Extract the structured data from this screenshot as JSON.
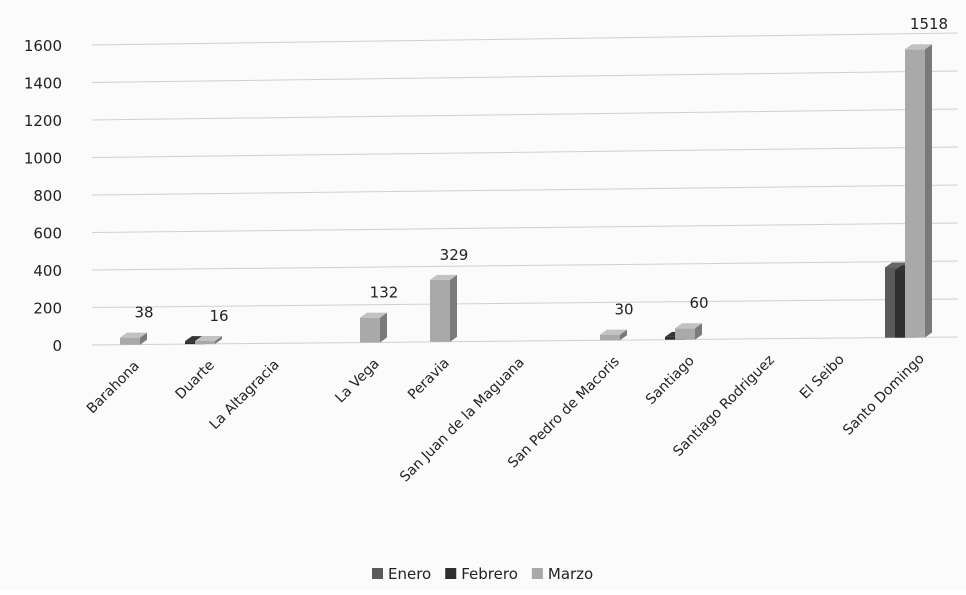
{
  "chart_data": {
    "type": "bar",
    "categories": [
      "Barahona",
      "Duarte",
      "La Altagracia",
      "La Vega",
      "Peravia",
      "San Juan de la Maguana",
      "San Pedro de Macoris",
      "Santiago",
      "Santiago Rodriguez",
      "El Seibo",
      "Santo Domingo"
    ],
    "series": [
      {
        "name": "Enero",
        "color": "#5a5a5a",
        "values": [
          0,
          0,
          0,
          0,
          0,
          0,
          0,
          0,
          0,
          0,
          370
        ]
      },
      {
        "name": "Febrero",
        "color": "#2e2e2e",
        "values": [
          0,
          16,
          0,
          0,
          0,
          0,
          0,
          15,
          0,
          0,
          355
        ]
      },
      {
        "name": "Marzo",
        "color": "#a9a9a9",
        "values": [
          38,
          16,
          0,
          132,
          329,
          0,
          30,
          60,
          0,
          0,
          1518
        ]
      }
    ],
    "data_labels": [
      {
        "category": "Barahona",
        "text": "38"
      },
      {
        "category": "Duarte",
        "text": "16"
      },
      {
        "category": "La Vega",
        "text": "132"
      },
      {
        "category": "Peravia",
        "text": "329"
      },
      {
        "category": "San Pedro de Macoris",
        "text": "30"
      },
      {
        "category": "Santiago",
        "text": "60"
      },
      {
        "category": "Santo Domingo",
        "text": "1518"
      }
    ],
    "yticks": [
      "0",
      "200",
      "400",
      "600",
      "800",
      "1000",
      "1200",
      "1400",
      "1600"
    ],
    "ylim": [
      0,
      1600
    ],
    "grid": true,
    "legend": "bottom",
    "title": "",
    "xlabel": "",
    "ylabel": ""
  }
}
